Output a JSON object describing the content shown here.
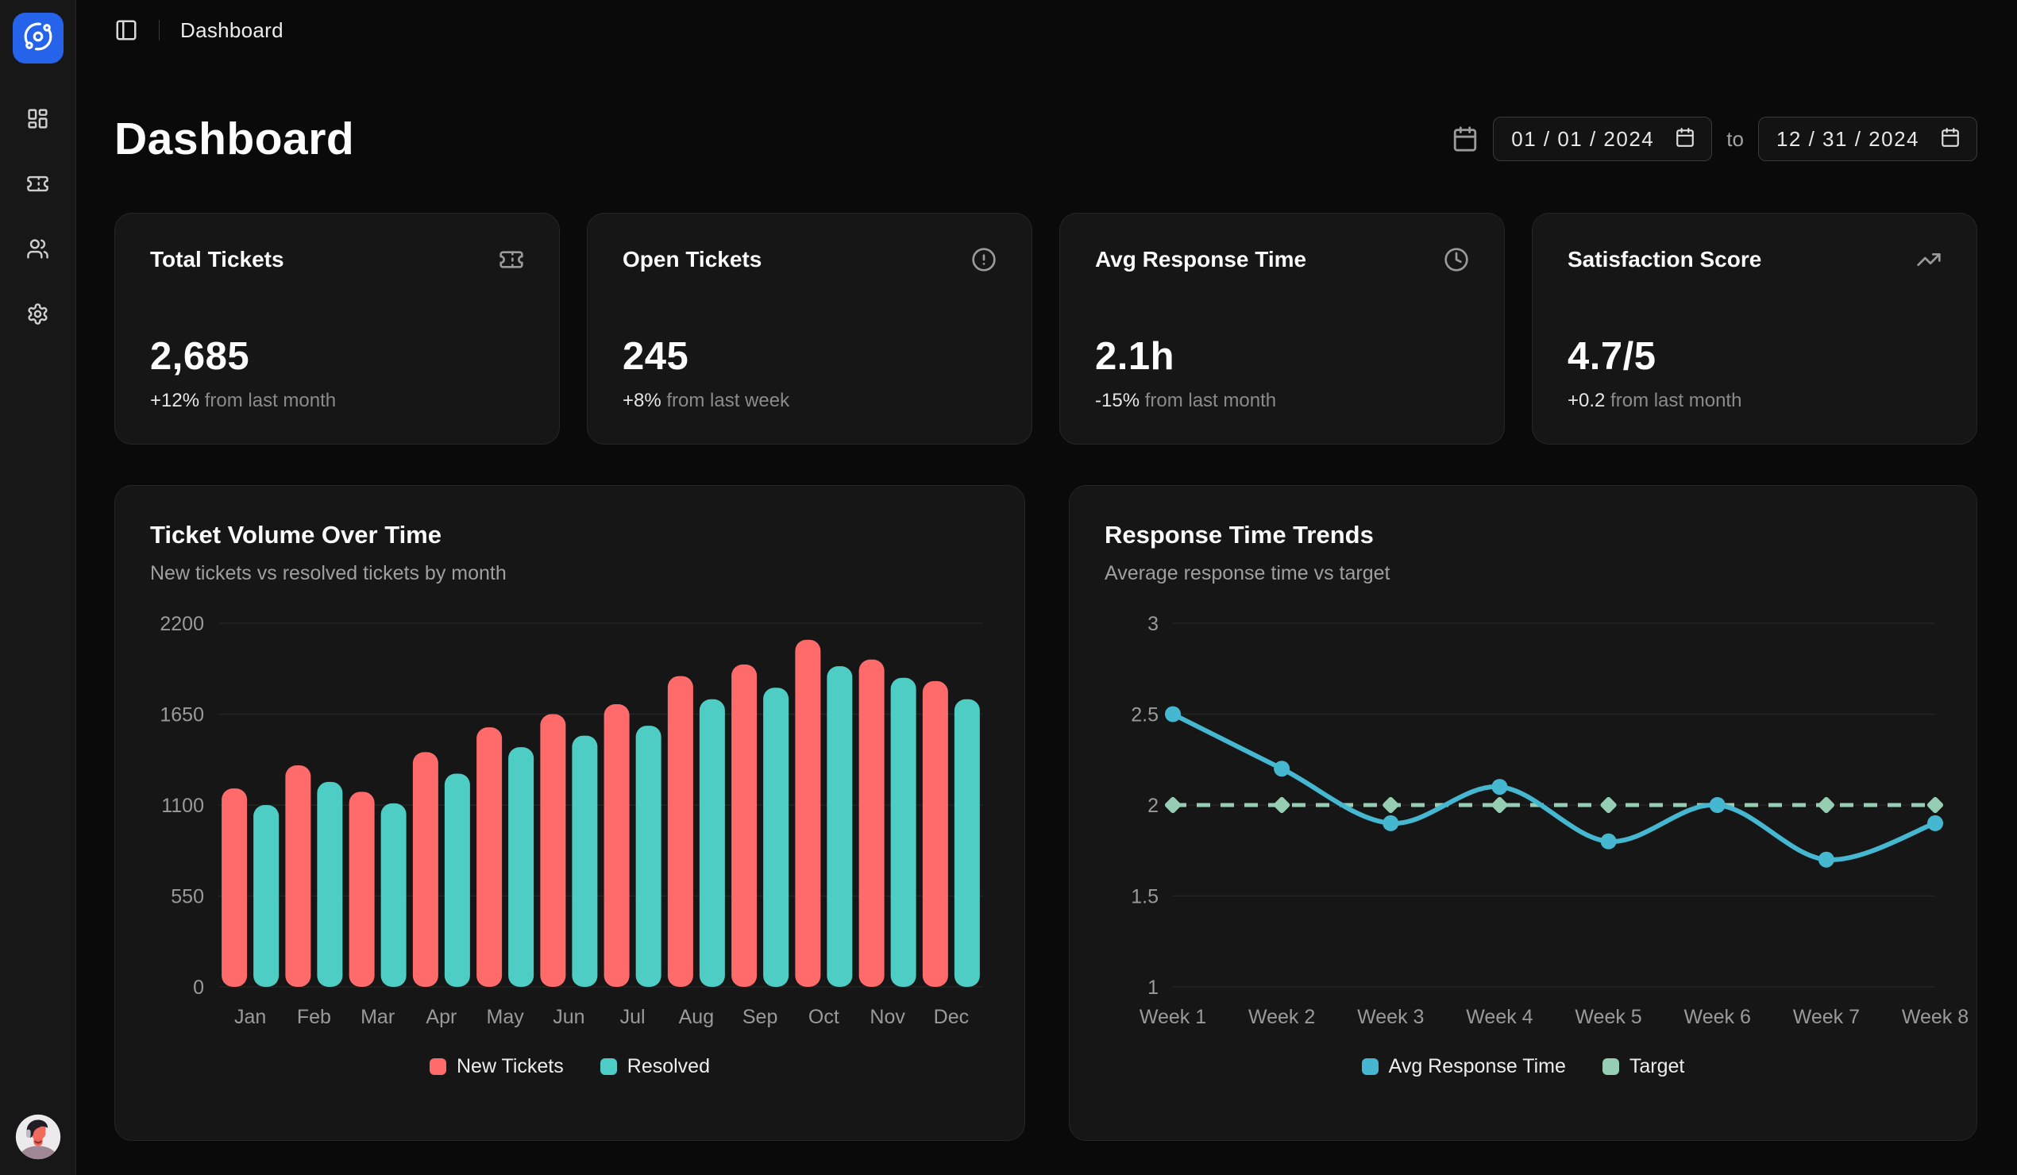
{
  "app": {
    "logo_icon": "orbit-icon",
    "breadcrumb": "Dashboard",
    "sidebar_items": [
      "dashboard",
      "tickets",
      "users",
      "settings"
    ]
  },
  "page": {
    "title": "Dashboard"
  },
  "date_range": {
    "start": "01 / 01 / 2024",
    "separator": "to",
    "end": "12 / 31 / 2024"
  },
  "stats": [
    {
      "title": "Total Tickets",
      "icon": "ticket-icon",
      "value": "2,685",
      "delta": "+12%",
      "delta_note": " from last month"
    },
    {
      "title": "Open Tickets",
      "icon": "alert-circle-icon",
      "value": "245",
      "delta": "+8%",
      "delta_note": " from last week"
    },
    {
      "title": "Avg Response Time",
      "icon": "clock-icon",
      "value": "2.1h",
      "delta": "-15%",
      "delta_note": " from last month"
    },
    {
      "title": "Satisfaction Score",
      "icon": "trending-up-icon",
      "value": "4.7/5",
      "delta": "+0.2",
      "delta_note": " from last month"
    }
  ],
  "colors": {
    "page_bg": "#0a0a0a",
    "sidebar_bg": "#171717",
    "card_bg": "#161616",
    "card_border": "#262626",
    "logo_blue": "#2563eb",
    "new_tickets_red": "#ff6b6b",
    "resolved_teal": "#4ecdc4",
    "avg_response_blue": "#45b7d1",
    "target_green": "#96ceb4",
    "grid_line": "#242424",
    "axis_text": "#9a9a9a"
  },
  "chart_data": [
    {
      "type": "bar",
      "title": "Ticket Volume Over Time",
      "subtitle": "New tickets vs resolved tickets by month",
      "categories": [
        "Jan",
        "Feb",
        "Mar",
        "Apr",
        "May",
        "Jun",
        "Jul",
        "Aug",
        "Sep",
        "Oct",
        "Nov",
        "Dec"
      ],
      "series": [
        {
          "name": "New Tickets",
          "color": "#ff6b6b",
          "values": [
            1200,
            1340,
            1180,
            1420,
            1570,
            1650,
            1710,
            1880,
            1950,
            2100,
            1980,
            1850
          ]
        },
        {
          "name": "Resolved",
          "color": "#4ecdc4",
          "values": [
            1100,
            1240,
            1110,
            1290,
            1450,
            1520,
            1580,
            1740,
            1810,
            1940,
            1870,
            1740
          ]
        }
      ],
      "ylim": [
        0,
        2200
      ],
      "yticks": [
        0,
        550,
        1100,
        1650,
        2200
      ],
      "grid": true,
      "legend_position": "bottom"
    },
    {
      "type": "line",
      "title": "Response Time Trends",
      "subtitle": "Average response time vs target",
      "categories": [
        "Week 1",
        "Week 2",
        "Week 3",
        "Week 4",
        "Week 5",
        "Week 6",
        "Week 7",
        "Week 8"
      ],
      "series": [
        {
          "name": "Avg Response Time",
          "color": "#45b7d1",
          "style": "solid",
          "marker": "circle",
          "values": [
            2.5,
            2.2,
            1.9,
            2.1,
            1.8,
            2.0,
            1.7,
            1.9
          ]
        },
        {
          "name": "Target",
          "color": "#96ceb4",
          "style": "dashed",
          "marker": "diamond",
          "values": [
            2,
            2,
            2,
            2,
            2,
            2,
            2,
            2
          ]
        }
      ],
      "ylim": [
        1,
        3
      ],
      "yticks": [
        1,
        1.5,
        2,
        2.5,
        3
      ],
      "grid": true,
      "legend_position": "bottom"
    }
  ]
}
